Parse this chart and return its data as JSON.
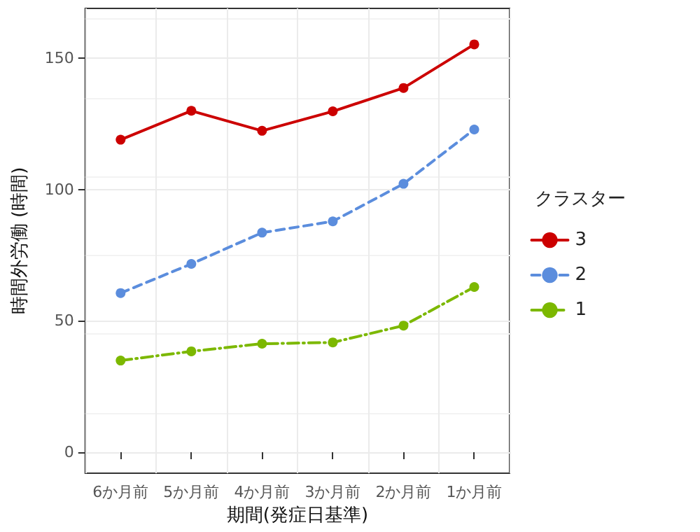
{
  "chart_data": {
    "type": "line",
    "xlabel": "期間(発症日基準)",
    "ylabel": "時間外労働 (時間)",
    "legend_title": "クラスター",
    "categories": [
      "6か月前",
      "5か月前",
      "4か月前",
      "3か月前",
      "2か月前",
      "1か月前"
    ],
    "series": [
      {
        "name": "3",
        "color": "#cc0000",
        "line_style": "solid",
        "values": [
          119,
          130,
          122.4,
          129.8,
          138.7,
          155.3
        ]
      },
      {
        "name": "2",
        "color": "#5b8ddd",
        "line_style": "dashed",
        "values": [
          60.6,
          71.7,
          83.6,
          87.9,
          102.2,
          122.9
        ]
      },
      {
        "name": "1",
        "color": "#7cb800",
        "line_style": "dashdot",
        "values": [
          34.9,
          38.4,
          41.3,
          41.8,
          48.2,
          62.9
        ]
      }
    ],
    "ylim": [
      -8,
      169
    ],
    "yticks": [
      0,
      50,
      100,
      150
    ],
    "grid": true,
    "legend": "right",
    "marker": "circle"
  }
}
